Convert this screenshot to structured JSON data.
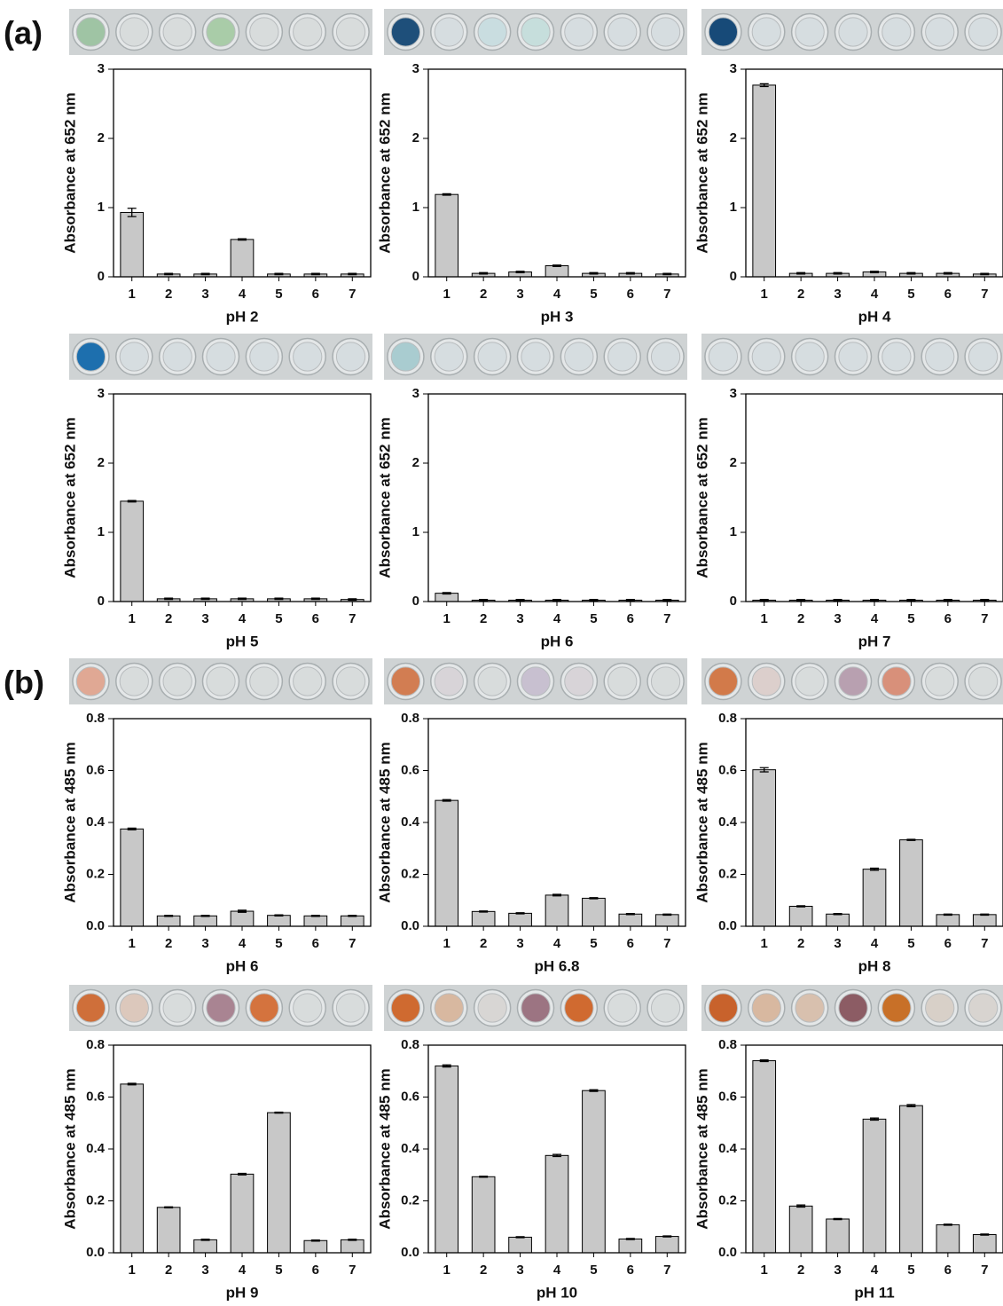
{
  "panel_labels": [
    "(a)",
    "(b)"
  ],
  "chart_data": [
    {
      "type": "bar",
      "categories": [
        "1",
        "2",
        "3",
        "4",
        "5",
        "6",
        "7"
      ],
      "values": [
        0.93,
        0.04,
        0.04,
        0.54,
        0.04,
        0.04,
        0.04
      ],
      "errors": [
        0.06,
        0.01,
        0.01,
        0.01,
        0.01,
        0.01,
        0.01
      ],
      "xlabel": "pH 2",
      "ylabel": "Absorbance at 652 nm",
      "ylim": [
        0,
        3
      ],
      "yticks": [
        0,
        1,
        2,
        3
      ],
      "color": "#c8c8c8",
      "well_colors": [
        "#9fc4a4",
        "#d8dcdc",
        "#d8dcdc",
        "#a9cca8",
        "#d8dcdc",
        "#d8dcdc",
        "#d8dcdc"
      ]
    },
    {
      "type": "bar",
      "categories": [
        "1",
        "2",
        "3",
        "4",
        "5",
        "6",
        "7"
      ],
      "values": [
        1.19,
        0.05,
        0.07,
        0.16,
        0.05,
        0.05,
        0.04
      ],
      "errors": [
        0.01,
        0.01,
        0.01,
        0.01,
        0.01,
        0.01,
        0.01
      ],
      "xlabel": "pH 3",
      "ylabel": "Absorbance at 652 nm",
      "ylim": [
        0,
        3
      ],
      "yticks": [
        0,
        1,
        2,
        3
      ],
      "color": "#c8c8c8",
      "well_colors": [
        "#1e4f7a",
        "#d6dde0",
        "#c9dde0",
        "#c6dedc",
        "#d6dde0",
        "#d6dde0",
        "#d6dde0"
      ]
    },
    {
      "type": "bar",
      "categories": [
        "1",
        "2",
        "3",
        "4",
        "5",
        "6",
        "7"
      ],
      "values": [
        2.77,
        0.05,
        0.05,
        0.07,
        0.05,
        0.05,
        0.04
      ],
      "errors": [
        0.02,
        0.01,
        0.01,
        0.01,
        0.01,
        0.01,
        0.01
      ],
      "xlabel": "pH 4",
      "ylabel": "Absorbance at 652 nm",
      "ylim": [
        0,
        3
      ],
      "yticks": [
        0,
        1,
        2,
        3
      ],
      "color": "#c8c8c8",
      "well_colors": [
        "#174a78",
        "#d6dde0",
        "#d6dde0",
        "#d6dde0",
        "#d6dde0",
        "#d6dde0",
        "#d6dde0"
      ]
    },
    {
      "type": "bar",
      "categories": [
        "1",
        "2",
        "3",
        "4",
        "5",
        "6",
        "7"
      ],
      "values": [
        1.45,
        0.04,
        0.04,
        0.04,
        0.04,
        0.04,
        0.03
      ],
      "errors": [
        0.01,
        0.01,
        0.01,
        0.01,
        0.01,
        0.01,
        0.01
      ],
      "xlabel": "pH 5",
      "ylabel": "Absorbance at 652 nm",
      "ylim": [
        0,
        3
      ],
      "yticks": [
        0,
        1,
        2,
        3
      ],
      "color": "#c8c8c8",
      "well_colors": [
        "#1d6fae",
        "#d6dde0",
        "#d6dde0",
        "#d6dde0",
        "#d6dde0",
        "#d6dde0",
        "#d6dde0"
      ]
    },
    {
      "type": "bar",
      "categories": [
        "1",
        "2",
        "3",
        "4",
        "5",
        "6",
        "7"
      ],
      "values": [
        0.12,
        0.02,
        0.02,
        0.02,
        0.02,
        0.02,
        0.02
      ],
      "errors": [
        0.01,
        0.01,
        0.01,
        0.01,
        0.01,
        0.01,
        0.01
      ],
      "xlabel": "pH 6",
      "ylabel": "Absorbance at 652 nm",
      "ylim": [
        0,
        3
      ],
      "yticks": [
        0,
        1,
        2,
        3
      ],
      "color": "#c8c8c8",
      "well_colors": [
        "#a9ccd0",
        "#d6dde0",
        "#d6dde0",
        "#d6dde0",
        "#d6dde0",
        "#d6dde0",
        "#d6dde0"
      ]
    },
    {
      "type": "bar",
      "categories": [
        "1",
        "2",
        "3",
        "4",
        "5",
        "6",
        "7"
      ],
      "values": [
        0.02,
        0.02,
        0.02,
        0.02,
        0.02,
        0.02,
        0.02
      ],
      "errors": [
        0.01,
        0.01,
        0.01,
        0.01,
        0.01,
        0.01,
        0.01
      ],
      "xlabel": "pH 7",
      "ylabel": "Absorbance at 652 nm",
      "ylim": [
        0,
        3
      ],
      "yticks": [
        0,
        1,
        2,
        3
      ],
      "color": "#c8c8c8",
      "well_colors": [
        "#d6dde0",
        "#d6dde0",
        "#d6dde0",
        "#d6dde0",
        "#d6dde0",
        "#d6dde0",
        "#d6dde0"
      ]
    },
    {
      "type": "bar",
      "categories": [
        "1",
        "2",
        "3",
        "4",
        "5",
        "6",
        "7"
      ],
      "values": [
        0.375,
        0.04,
        0.04,
        0.058,
        0.042,
        0.04,
        0.04
      ],
      "errors": [
        0.003,
        0.002,
        0.002,
        0.004,
        0.002,
        0.002,
        0.002
      ],
      "xlabel": "pH 6",
      "ylabel": "Absorbance at 485 nm",
      "ylim": [
        0,
        0.8
      ],
      "yticks": [
        {
          "value": 0,
          "label": "0.0"
        },
        0.2,
        0.4,
        0.6,
        0.8
      ],
      "color": "#c8c8c8",
      "well_colors": [
        "#e0a894",
        "#d8dcdc",
        "#d8dcdc",
        "#d8dcdc",
        "#d8dcdc",
        "#d8dcdc",
        "#d8dcdc"
      ]
    },
    {
      "type": "bar",
      "categories": [
        "1",
        "2",
        "3",
        "4",
        "5",
        "6",
        "7"
      ],
      "values": [
        0.485,
        0.057,
        0.05,
        0.12,
        0.108,
        0.047,
        0.045
      ],
      "errors": [
        0.003,
        0.002,
        0.002,
        0.003,
        0.002,
        0.002,
        0.002
      ],
      "xlabel": "pH 6.8",
      "ylabel": "Absorbance at 485 nm",
      "ylim": [
        0,
        0.8
      ],
      "yticks": [
        {
          "value": 0,
          "label": "0.0"
        },
        0.2,
        0.4,
        0.6,
        0.8
      ],
      "color": "#c8c8c8",
      "well_colors": [
        "#d27d52",
        "#d8d4d8",
        "#d8dcdc",
        "#c8c0d0",
        "#d8d4d8",
        "#d8dcdc",
        "#d8dcdc"
      ]
    },
    {
      "type": "bar",
      "categories": [
        "1",
        "2",
        "3",
        "4",
        "5",
        "6",
        "7"
      ],
      "values": [
        0.603,
        0.077,
        0.047,
        0.22,
        0.333,
        0.045,
        0.045
      ],
      "errors": [
        0.008,
        0.002,
        0.002,
        0.004,
        0.002,
        0.002,
        0.002
      ],
      "xlabel": "pH 8",
      "ylabel": "Absorbance at 485 nm",
      "ylim": [
        0,
        0.8
      ],
      "yticks": [
        {
          "value": 0,
          "label": "0.0"
        },
        0.2,
        0.4,
        0.6,
        0.8
      ],
      "color": "#c8c8c8",
      "well_colors": [
        "#d27a4a",
        "#dccfcc",
        "#d8dcdc",
        "#b8a0b0",
        "#d8907a",
        "#d8dcdc",
        "#d8dcdc"
      ]
    },
    {
      "type": "bar",
      "categories": [
        "1",
        "2",
        "3",
        "4",
        "5",
        "6",
        "7"
      ],
      "values": [
        0.65,
        0.175,
        0.05,
        0.303,
        0.54,
        0.047,
        0.05
      ],
      "errors": [
        0.003,
        0.002,
        0.002,
        0.003,
        0.002,
        0.002,
        0.002
      ],
      "xlabel": "pH 9",
      "ylabel": "Absorbance at 485 nm",
      "ylim": [
        0,
        0.8
      ],
      "yticks": [
        {
          "value": 0,
          "label": "0.0"
        },
        0.2,
        0.4,
        0.6,
        0.8
      ],
      "color": "#c8c8c8",
      "well_colors": [
        "#cf6f3a",
        "#dcc8bc",
        "#d8dcdc",
        "#a98492",
        "#d4733e",
        "#d8dcdc",
        "#d8dcdc"
      ]
    },
    {
      "type": "bar",
      "categories": [
        "1",
        "2",
        "3",
        "4",
        "5",
        "6",
        "7"
      ],
      "values": [
        0.72,
        0.293,
        0.06,
        0.375,
        0.625,
        0.053,
        0.063
      ],
      "errors": [
        0.004,
        0.002,
        0.002,
        0.004,
        0.003,
        0.002,
        0.002
      ],
      "xlabel": "pH 10",
      "ylabel": "Absorbance at 485 nm",
      "ylim": [
        0,
        0.8
      ],
      "yticks": [
        {
          "value": 0,
          "label": "0.0"
        },
        0.2,
        0.4,
        0.6,
        0.8
      ],
      "color": "#c8c8c8",
      "well_colors": [
        "#cf6a30",
        "#d8b8a0",
        "#d8d6d4",
        "#9c7482",
        "#d06a30",
        "#d8dcdc",
        "#d8dcdc"
      ]
    },
    {
      "type": "bar",
      "categories": [
        "1",
        "2",
        "3",
        "4",
        "5",
        "6",
        "7"
      ],
      "values": [
        0.74,
        0.18,
        0.13,
        0.515,
        0.567,
        0.108,
        0.07
      ],
      "errors": [
        0.003,
        0.004,
        0.002,
        0.004,
        0.004,
        0.002,
        0.002
      ],
      "xlabel": "pH 11",
      "ylabel": "Absorbance at 485 nm",
      "ylim": [
        0,
        0.8
      ],
      "yticks": [
        {
          "value": 0,
          "label": "0.0"
        },
        0.2,
        0.4,
        0.6,
        0.8
      ],
      "color": "#c8c8c8",
      "well_colors": [
        "#c8622c",
        "#d8b8a0",
        "#d8c0ae",
        "#8c5c64",
        "#c87028",
        "#d8d0c8",
        "#d8d4d0"
      ]
    }
  ]
}
